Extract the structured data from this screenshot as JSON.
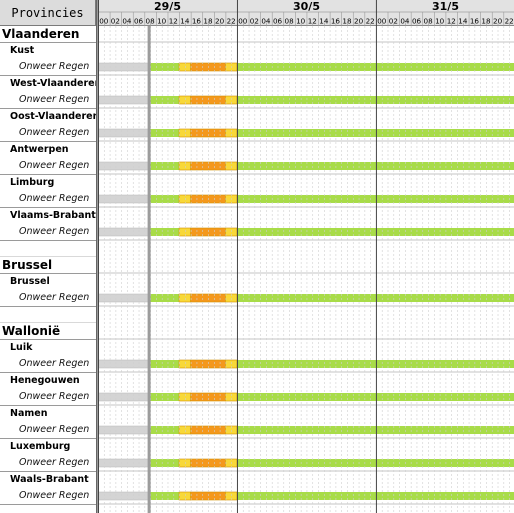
{
  "header": {
    "provinces_label": "Provincies"
  },
  "timeline": {
    "days": [
      "29/5",
      "30/5",
      "31/5"
    ],
    "hour_labels": [
      "00",
      "02",
      "04",
      "06",
      "08",
      "10",
      "12",
      "14",
      "16",
      "18",
      "20",
      "22"
    ]
  },
  "rows": [
    {
      "kind": "region",
      "label": "Vlaanderen"
    },
    {
      "kind": "province",
      "label": "Kust"
    },
    {
      "kind": "event",
      "label": "Onweer Regen",
      "warning": true
    },
    {
      "kind": "province",
      "label": "West-Vlaanderen"
    },
    {
      "kind": "event",
      "label": "Onweer Regen",
      "warning": true
    },
    {
      "kind": "province",
      "label": "Oost-Vlaanderen"
    },
    {
      "kind": "event",
      "label": "Onweer Regen",
      "warning": true
    },
    {
      "kind": "province",
      "label": "Antwerpen"
    },
    {
      "kind": "event",
      "label": "Onweer Regen",
      "warning": true
    },
    {
      "kind": "province",
      "label": "Limburg"
    },
    {
      "kind": "event",
      "label": "Onweer Regen",
      "warning": true
    },
    {
      "kind": "province",
      "label": "Vlaams-Brabant"
    },
    {
      "kind": "event",
      "label": "Onweer Regen",
      "warning": true
    },
    {
      "kind": "spacer",
      "label": ""
    },
    {
      "kind": "region",
      "label": "Brussel"
    },
    {
      "kind": "province",
      "label": "Brussel"
    },
    {
      "kind": "event",
      "label": "Onweer Regen",
      "warning": true
    },
    {
      "kind": "spacer",
      "label": ""
    },
    {
      "kind": "region",
      "label": "Wallonië"
    },
    {
      "kind": "province",
      "label": "Luik"
    },
    {
      "kind": "event",
      "label": "Onweer Regen",
      "warning": true
    },
    {
      "kind": "province",
      "label": "Henegouwen"
    },
    {
      "kind": "event",
      "label": "Onweer Regen",
      "warning": true
    },
    {
      "kind": "province",
      "label": "Namen"
    },
    {
      "kind": "event",
      "label": "Onweer Regen",
      "warning": true
    },
    {
      "kind": "province",
      "label": "Luxemburg"
    },
    {
      "kind": "event",
      "label": "Onweer Regen",
      "warning": true
    },
    {
      "kind": "province",
      "label": "Waals-Brabant"
    },
    {
      "kind": "event",
      "label": "Onweer Regen",
      "warning": true
    }
  ],
  "warning_schedule": {
    "past_until_hour": 9,
    "segments": [
      {
        "level": "green",
        "from_hour": 9,
        "to_hour": 14
      },
      {
        "level": "yellow",
        "from_hour": 14,
        "to_hour": 16
      },
      {
        "level": "orange",
        "from_hour": 16,
        "to_hour": 22
      },
      {
        "level": "yellow",
        "from_hour": 22,
        "to_hour": 24
      },
      {
        "level": "green",
        "from_hour": 24,
        "to_hour": 72
      }
    ]
  },
  "colors": {
    "green": "#a8dc48",
    "yellow": "#f8d838",
    "orange": "#f4981c",
    "past": "#d4d4d4",
    "header_bg": "#e2e2e2",
    "separator": "#8a8a8a"
  }
}
